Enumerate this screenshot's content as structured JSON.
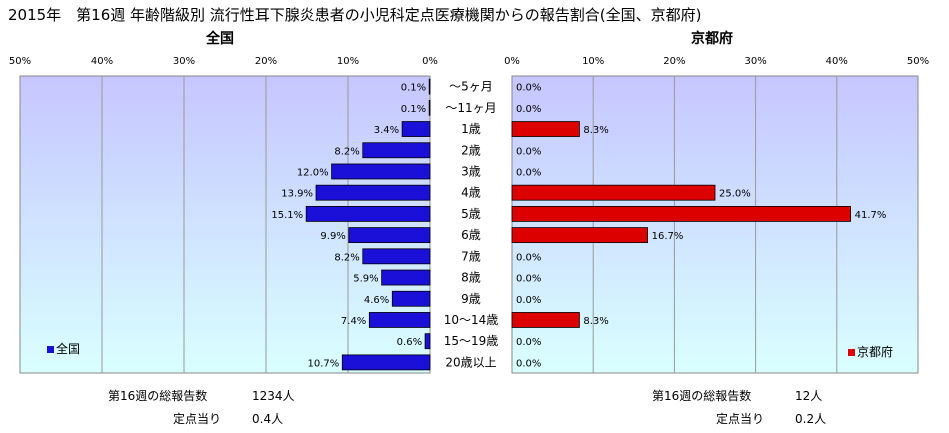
{
  "title": "2015年　第16週 年齢階級別 流行性耳下腺炎患者の小児科定点医療機関からの報告割合(全国、京都府)",
  "colors": {
    "national": "#1a10d8",
    "kyoto": "#dd0000",
    "plot_bg_top": "#c6c6ff",
    "plot_bg_bottom": "#d9ffff"
  },
  "chart_data": [
    {
      "type": "bar",
      "orientation": "horizontal",
      "title": "全国",
      "direction": "right-to-left",
      "xlim": [
        0,
        50
      ],
      "ticks": [
        "50%",
        "40%",
        "30%",
        "20%",
        "10%",
        "0%"
      ],
      "tick_values": [
        50,
        40,
        30,
        20,
        10,
        0
      ],
      "grid": true,
      "legend": {
        "label": "全国",
        "position": "bottom-left"
      },
      "categories": [
        "～5ヶ月",
        "～11ヶ月",
        "1歳",
        "2歳",
        "3歳",
        "4歳",
        "5歳",
        "6歳",
        "7歳",
        "8歳",
        "9歳",
        "10～14歳",
        "15～19歳",
        "20歳以上"
      ],
      "values": [
        0.1,
        0.1,
        3.4,
        8.2,
        12.0,
        13.9,
        15.1,
        9.9,
        8.2,
        5.9,
        4.6,
        7.4,
        0.6,
        10.7
      ],
      "labels": [
        "0.1%",
        "0.1%",
        "3.4%",
        "8.2%",
        "12.0%",
        "13.9%",
        "15.1%",
        "9.9%",
        "8.2%",
        "5.9%",
        "4.6%",
        "7.4%",
        "0.6%",
        "10.7%"
      ]
    },
    {
      "type": "bar",
      "orientation": "horizontal",
      "title": "京都府",
      "direction": "left-to-right",
      "xlim": [
        0,
        50
      ],
      "ticks": [
        "0%",
        "10%",
        "20%",
        "30%",
        "40%",
        "50%"
      ],
      "tick_values": [
        0,
        10,
        20,
        30,
        40,
        50
      ],
      "grid": true,
      "legend": {
        "label": "京都府",
        "position": "bottom-right"
      },
      "categories": [
        "～5ヶ月",
        "～11ヶ月",
        "1歳",
        "2歳",
        "3歳",
        "4歳",
        "5歳",
        "6歳",
        "7歳",
        "8歳",
        "9歳",
        "10～14歳",
        "15～19歳",
        "20歳以上"
      ],
      "values": [
        0,
        0,
        8.3,
        0,
        0,
        25.0,
        41.7,
        16.7,
        0,
        0,
        0,
        8.3,
        0,
        0
      ],
      "labels": [
        "0.0%",
        "0.0%",
        "8.3%",
        "0.0%",
        "0.0%",
        "25.0%",
        "41.7%",
        "16.7%",
        "0.0%",
        "0.0%",
        "0.0%",
        "8.3%",
        "0.0%",
        "0.0%"
      ]
    }
  ],
  "footer": {
    "national_total_label": "第16週の総報告数",
    "national_total_value": "1234人",
    "national_per_label": "定点当り",
    "national_per_value": "0.4人",
    "kyoto_total_label": "第16週の総報告数",
    "kyoto_total_value": "12人",
    "kyoto_per_label": "定点当り",
    "kyoto_per_value": "0.2人"
  }
}
